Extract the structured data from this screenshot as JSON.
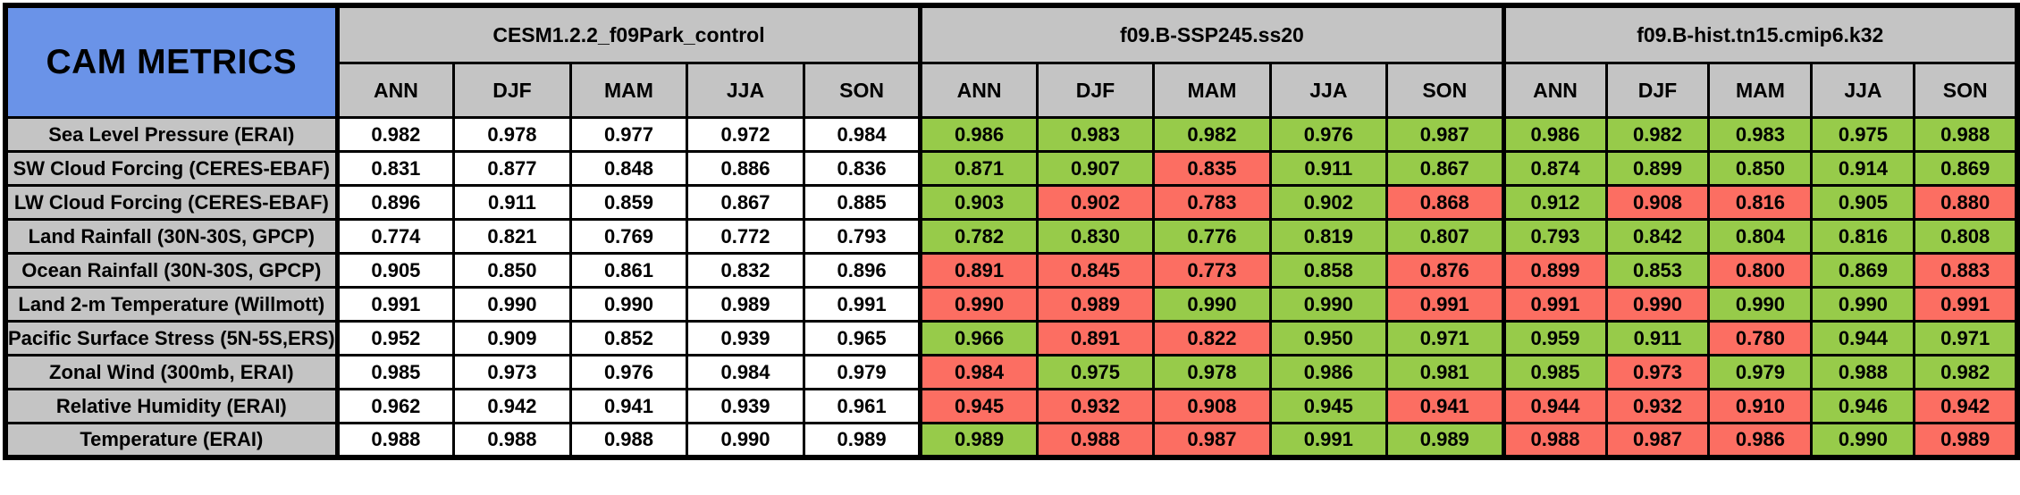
{
  "theme": {
    "title_bg": "#6A93E8",
    "header_bg": "#C4C4C4",
    "border_color": "#000000",
    "cell_green": "#97CB4A",
    "cell_red": "#FC6E62",
    "cell_white": "#FFFFFF"
  },
  "chart_data": {
    "type": "table",
    "title": "CAM METRICS",
    "column_groups": [
      "CESM1.2.2_f09Park_control",
      "f09.B-SSP245.ss20",
      "f09.B-hist.tn15.cmip6.k32"
    ],
    "seasons": [
      "ANN",
      "DJF",
      "MAM",
      "JJA",
      "SON"
    ],
    "cell_colors": {
      "w": "#FFFFFF",
      "g": "#97CB4A",
      "r": "#FC6E62"
    },
    "rows": [
      {
        "label": "Sea Level Pressure (ERAI)",
        "cells": [
          [
            "0.982",
            "w"
          ],
          [
            "0.978",
            "w"
          ],
          [
            "0.977",
            "w"
          ],
          [
            "0.972",
            "w"
          ],
          [
            "0.984",
            "w"
          ],
          [
            "0.986",
            "g"
          ],
          [
            "0.983",
            "g"
          ],
          [
            "0.982",
            "g"
          ],
          [
            "0.976",
            "g"
          ],
          [
            "0.987",
            "g"
          ],
          [
            "0.986",
            "g"
          ],
          [
            "0.982",
            "g"
          ],
          [
            "0.983",
            "g"
          ],
          [
            "0.975",
            "g"
          ],
          [
            "0.988",
            "g"
          ]
        ]
      },
      {
        "label": "SW Cloud Forcing (CERES-EBAF)",
        "cells": [
          [
            "0.831",
            "w"
          ],
          [
            "0.877",
            "w"
          ],
          [
            "0.848",
            "w"
          ],
          [
            "0.886",
            "w"
          ],
          [
            "0.836",
            "w"
          ],
          [
            "0.871",
            "g"
          ],
          [
            "0.907",
            "g"
          ],
          [
            "0.835",
            "r"
          ],
          [
            "0.911",
            "g"
          ],
          [
            "0.867",
            "g"
          ],
          [
            "0.874",
            "g"
          ],
          [
            "0.899",
            "g"
          ],
          [
            "0.850",
            "g"
          ],
          [
            "0.914",
            "g"
          ],
          [
            "0.869",
            "g"
          ]
        ]
      },
      {
        "label": "LW Cloud Forcing (CERES-EBAF)",
        "cells": [
          [
            "0.896",
            "w"
          ],
          [
            "0.911",
            "w"
          ],
          [
            "0.859",
            "w"
          ],
          [
            "0.867",
            "w"
          ],
          [
            "0.885",
            "w"
          ],
          [
            "0.903",
            "g"
          ],
          [
            "0.902",
            "r"
          ],
          [
            "0.783",
            "r"
          ],
          [
            "0.902",
            "g"
          ],
          [
            "0.868",
            "r"
          ],
          [
            "0.912",
            "g"
          ],
          [
            "0.908",
            "r"
          ],
          [
            "0.816",
            "r"
          ],
          [
            "0.905",
            "g"
          ],
          [
            "0.880",
            "r"
          ]
        ]
      },
      {
        "label": "Land Rainfall (30N-30S, GPCP)",
        "cells": [
          [
            "0.774",
            "w"
          ],
          [
            "0.821",
            "w"
          ],
          [
            "0.769",
            "w"
          ],
          [
            "0.772",
            "w"
          ],
          [
            "0.793",
            "w"
          ],
          [
            "0.782",
            "g"
          ],
          [
            "0.830",
            "g"
          ],
          [
            "0.776",
            "g"
          ],
          [
            "0.819",
            "g"
          ],
          [
            "0.807",
            "g"
          ],
          [
            "0.793",
            "g"
          ],
          [
            "0.842",
            "g"
          ],
          [
            "0.804",
            "g"
          ],
          [
            "0.816",
            "g"
          ],
          [
            "0.808",
            "g"
          ]
        ]
      },
      {
        "label": "Ocean Rainfall (30N-30S, GPCP)",
        "cells": [
          [
            "0.905",
            "w"
          ],
          [
            "0.850",
            "w"
          ],
          [
            "0.861",
            "w"
          ],
          [
            "0.832",
            "w"
          ],
          [
            "0.896",
            "w"
          ],
          [
            "0.891",
            "r"
          ],
          [
            "0.845",
            "r"
          ],
          [
            "0.773",
            "r"
          ],
          [
            "0.858",
            "g"
          ],
          [
            "0.876",
            "r"
          ],
          [
            "0.899",
            "r"
          ],
          [
            "0.853",
            "g"
          ],
          [
            "0.800",
            "r"
          ],
          [
            "0.869",
            "g"
          ],
          [
            "0.883",
            "r"
          ]
        ]
      },
      {
        "label": "Land 2-m Temperature (Willmott)",
        "cells": [
          [
            "0.991",
            "w"
          ],
          [
            "0.990",
            "w"
          ],
          [
            "0.990",
            "w"
          ],
          [
            "0.989",
            "w"
          ],
          [
            "0.991",
            "w"
          ],
          [
            "0.990",
            "r"
          ],
          [
            "0.989",
            "r"
          ],
          [
            "0.990",
            "g"
          ],
          [
            "0.990",
            "g"
          ],
          [
            "0.991",
            "r"
          ],
          [
            "0.991",
            "r"
          ],
          [
            "0.990",
            "r"
          ],
          [
            "0.990",
            "g"
          ],
          [
            "0.990",
            "g"
          ],
          [
            "0.991",
            "r"
          ]
        ]
      },
      {
        "label": "Pacific Surface Stress (5N-5S,ERS)",
        "cells": [
          [
            "0.952",
            "w"
          ],
          [
            "0.909",
            "w"
          ],
          [
            "0.852",
            "w"
          ],
          [
            "0.939",
            "w"
          ],
          [
            "0.965",
            "w"
          ],
          [
            "0.966",
            "g"
          ],
          [
            "0.891",
            "r"
          ],
          [
            "0.822",
            "r"
          ],
          [
            "0.950",
            "g"
          ],
          [
            "0.971",
            "g"
          ],
          [
            "0.959",
            "g"
          ],
          [
            "0.911",
            "g"
          ],
          [
            "0.780",
            "r"
          ],
          [
            "0.944",
            "g"
          ],
          [
            "0.971",
            "g"
          ]
        ]
      },
      {
        "label": "Zonal Wind (300mb, ERAI)",
        "cells": [
          [
            "0.985",
            "w"
          ],
          [
            "0.973",
            "w"
          ],
          [
            "0.976",
            "w"
          ],
          [
            "0.984",
            "w"
          ],
          [
            "0.979",
            "w"
          ],
          [
            "0.984",
            "r"
          ],
          [
            "0.975",
            "g"
          ],
          [
            "0.978",
            "g"
          ],
          [
            "0.986",
            "g"
          ],
          [
            "0.981",
            "g"
          ],
          [
            "0.985",
            "g"
          ],
          [
            "0.973",
            "r"
          ],
          [
            "0.979",
            "g"
          ],
          [
            "0.988",
            "g"
          ],
          [
            "0.982",
            "g"
          ]
        ]
      },
      {
        "label": "Relative Humidity (ERAI)",
        "cells": [
          [
            "0.962",
            "w"
          ],
          [
            "0.942",
            "w"
          ],
          [
            "0.941",
            "w"
          ],
          [
            "0.939",
            "w"
          ],
          [
            "0.961",
            "w"
          ],
          [
            "0.945",
            "r"
          ],
          [
            "0.932",
            "r"
          ],
          [
            "0.908",
            "r"
          ],
          [
            "0.945",
            "g"
          ],
          [
            "0.941",
            "r"
          ],
          [
            "0.944",
            "r"
          ],
          [
            "0.932",
            "r"
          ],
          [
            "0.910",
            "r"
          ],
          [
            "0.946",
            "g"
          ],
          [
            "0.942",
            "r"
          ]
        ]
      },
      {
        "label": "Temperature (ERAI)",
        "cells": [
          [
            "0.988",
            "w"
          ],
          [
            "0.988",
            "w"
          ],
          [
            "0.988",
            "w"
          ],
          [
            "0.990",
            "w"
          ],
          [
            "0.989",
            "w"
          ],
          [
            "0.989",
            "g"
          ],
          [
            "0.988",
            "r"
          ],
          [
            "0.987",
            "r"
          ],
          [
            "0.991",
            "g"
          ],
          [
            "0.989",
            "g"
          ],
          [
            "0.988",
            "r"
          ],
          [
            "0.987",
            "r"
          ],
          [
            "0.986",
            "r"
          ],
          [
            "0.990",
            "g"
          ],
          [
            "0.989",
            "r"
          ]
        ]
      }
    ]
  }
}
